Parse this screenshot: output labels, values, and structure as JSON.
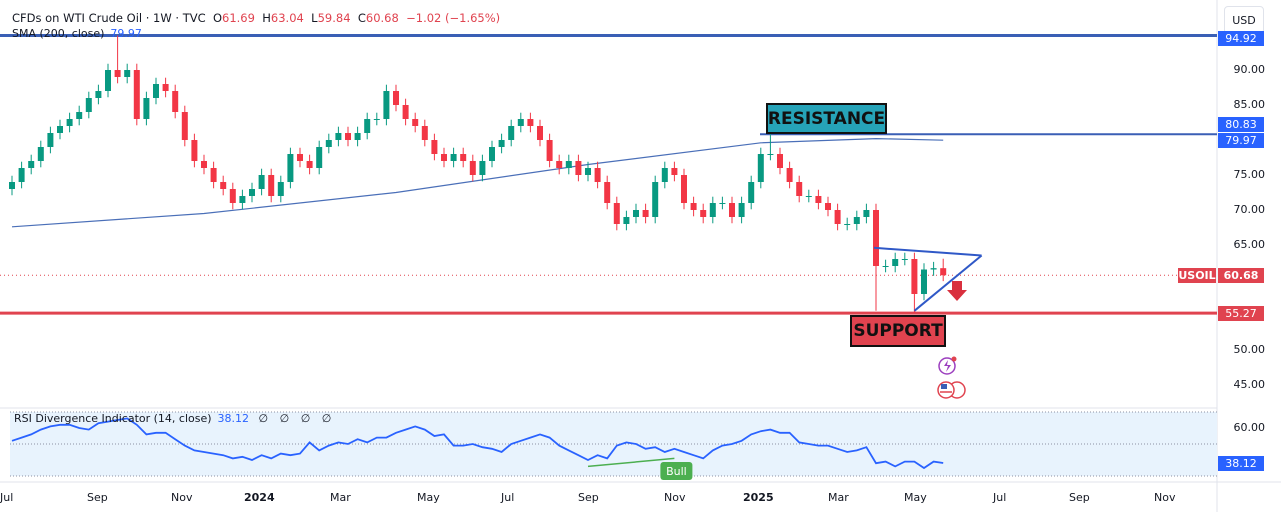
{
  "header": {
    "symbol_title": "CFDs on WTI Crude Oil · 1W · TVC",
    "open_label": "O",
    "open": "61.69",
    "high_label": "H",
    "high": "63.04",
    "low_label": "L",
    "low": "59.84",
    "close_label": "C",
    "close": "60.68",
    "change": "−1.02 (−1.65%)"
  },
  "sma": {
    "label": "SMA (200, close)",
    "value": "79.97"
  },
  "rsi": {
    "label": "RSI Divergence Indicator (14, close)",
    "value": "38.12",
    "extras": "∅ ∅ ∅ ∅",
    "axis_label": "60.00",
    "current_tag": "38.12",
    "divergence_label": "Bull"
  },
  "currency_button": "USD",
  "annotations": {
    "resistance": "RESISTANCE",
    "support": "SUPPORT"
  },
  "price_axis": {
    "ticks": [
      "90.00",
      "85.00",
      "75.00",
      "70.00",
      "65.00",
      "50.00",
      "45.00"
    ],
    "tick_values": [
      90,
      85,
      75,
      70,
      65,
      50,
      45
    ],
    "tag_top": "94.92",
    "tag_resistance": "80.83",
    "tag_sma": "79.97",
    "tag_symbol": "USOIL",
    "tag_last": "60.68",
    "tag_support": "55.27"
  },
  "time_axis": [
    {
      "label": "Jul",
      "bold": false
    },
    {
      "label": "Sep",
      "bold": false
    },
    {
      "label": "Nov",
      "bold": false
    },
    {
      "label": "2024",
      "bold": true
    },
    {
      "label": "Mar",
      "bold": false
    },
    {
      "label": "May",
      "bold": false
    },
    {
      "label": "Jul",
      "bold": false
    },
    {
      "label": "Sep",
      "bold": false
    },
    {
      "label": "Nov",
      "bold": false
    },
    {
      "label": "2025",
      "bold": true
    },
    {
      "label": "Mar",
      "bold": false
    },
    {
      "label": "May",
      "bold": false
    },
    {
      "label": "Jul",
      "bold": false
    },
    {
      "label": "Sep",
      "bold": false
    },
    {
      "label": "Nov",
      "bold": false
    }
  ],
  "colors": {
    "up": "#089981",
    "down": "#f23645",
    "sma": "#2962ff",
    "support": "#e0434f",
    "resistance_box": "#26a3b8",
    "rsi": "#2962ff",
    "rsi_bg": "#e8f3fd",
    "bull": "#4caf50"
  },
  "chart_data": {
    "type": "candlestick",
    "interval": "1W",
    "first_open": 73,
    "closes": [
      74,
      76,
      77,
      79,
      81,
      82,
      83,
      84,
      86,
      87,
      90,
      89,
      90,
      83,
      86,
      88,
      87,
      84,
      80,
      77,
      76,
      74,
      73,
      71,
      72,
      73,
      75,
      72,
      74,
      78,
      77,
      76,
      79,
      80,
      81,
      80,
      81,
      83,
      83,
      87,
      85,
      83,
      82,
      80,
      78,
      77,
      78,
      77,
      75,
      77,
      79,
      80,
      82,
      83,
      82,
      80,
      77,
      76,
      77,
      75,
      76,
      74,
      71,
      68,
      69,
      70,
      69,
      74,
      76,
      75,
      71,
      70,
      69,
      71,
      71,
      69,
      71,
      74,
      78,
      78,
      76,
      74,
      72,
      72,
      71,
      70,
      68,
      68,
      69,
      70,
      62,
      62,
      63,
      63,
      58,
      61.5,
      61.69,
      60.68
    ],
    "wick_overrides": {
      "11": {
        "h": 94.92
      },
      "79": {
        "h": 80.83
      },
      "90": {
        "l": 55.6
      },
      "94": {
        "l": 55.3
      },
      "97": {
        "h": 63.04,
        "l": 59.84
      }
    },
    "sma_200": [
      [
        0,
        67.6
      ],
      [
        20,
        69.5
      ],
      [
        40,
        72.5
      ],
      [
        60,
        76.5
      ],
      [
        78,
        79.6
      ],
      [
        90,
        80.2
      ],
      [
        97,
        79.97
      ]
    ],
    "levels": {
      "top": 94.92,
      "resistance": 80.83,
      "support": 55.27,
      "last": 60.68
    },
    "triangle": {
      "upper": [
        [
          90,
          64.6
        ],
        [
          101,
          63.5
        ]
      ],
      "lower": [
        [
          94,
          55.6
        ],
        [
          101,
          63.5
        ]
      ]
    },
    "rsi_values": [
      52,
      54,
      56,
      59,
      61,
      62,
      62,
      60,
      59,
      63,
      64,
      65,
      66,
      62,
      56,
      57,
      57,
      53,
      49,
      46,
      45,
      44,
      43,
      41,
      42,
      40,
      43,
      41,
      44,
      43,
      44,
      51,
      46,
      49,
      51,
      50,
      53,
      51,
      54,
      54,
      57,
      59,
      61,
      59,
      55,
      56,
      49,
      49,
      50,
      48,
      47,
      45,
      50,
      52,
      54,
      56,
      54,
      49,
      46,
      43,
      40,
      43,
      41,
      49,
      51,
      50,
      47,
      48,
      45,
      47,
      45,
      43,
      41,
      46,
      49,
      50,
      52,
      56,
      58,
      59,
      57,
      57,
      51,
      50,
      49,
      49,
      47,
      45,
      46,
      48,
      38,
      39,
      36,
      39,
      39,
      35,
      39,
      38.12
    ],
    "rsi_bands": [
      70,
      50,
      30
    ],
    "bull_divergence": [
      [
        60,
        36
      ],
      [
        69,
        41
      ]
    ],
    "price_range": [
      42,
      96
    ]
  }
}
